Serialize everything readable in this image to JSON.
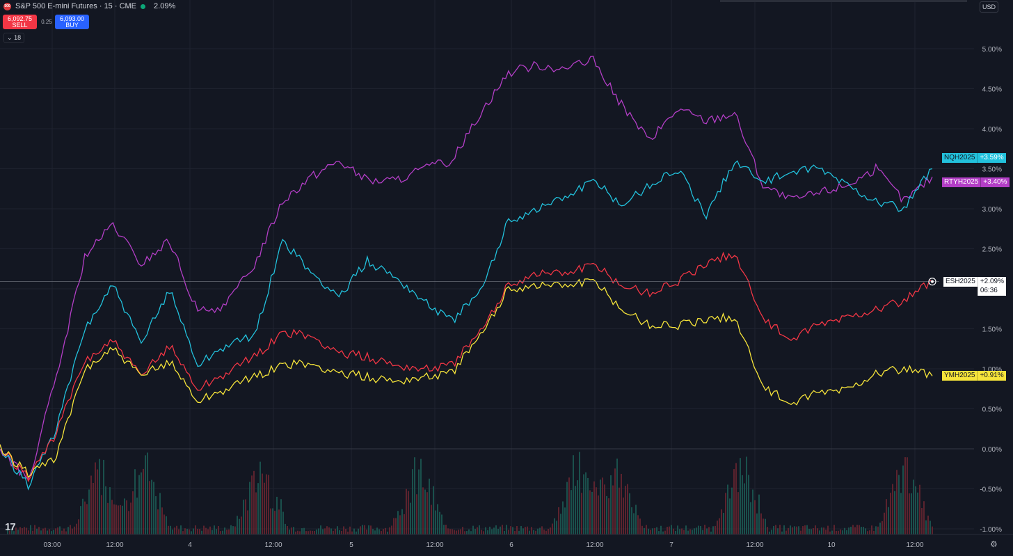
{
  "header": {
    "symbol_title": "S&P 500 E-mini Futures · 15 · CME",
    "change": "2.09%",
    "logo_text": "500",
    "sell_price": "6,092.75",
    "sell_label": "SELL",
    "spread": "0.25",
    "buy_price": "6,093.00",
    "buy_label": "BUY",
    "indicators_count": "18",
    "currency": "USD"
  },
  "colors": {
    "background": "#131722",
    "ES": "#f23645",
    "NQ": "#22c1dc",
    "RTY": "#b33ec6",
    "YM": "#f6e43a"
  },
  "chart_data": {
    "type": "line",
    "x_ticks": [
      "03:00",
      "12:00",
      "4",
      "12:00",
      "5",
      "12:00",
      "6",
      "12:00",
      "7",
      "12:00",
      "10",
      "12:00"
    ],
    "y_ticks": [
      "5.00%",
      "4.50%",
      "4.00%",
      "3.50%",
      "3.00%",
      "2.50%",
      "2.00%",
      "1.50%",
      "1.00%",
      "0.50%",
      "0.00%",
      "-0.50%",
      "-1.00%"
    ],
    "ylim": [
      -1.1,
      5.5
    ],
    "session_x": [
      "Feb 3 00:00",
      "Feb 3 03:00",
      "Feb 3 12:00",
      "Feb 4",
      "Feb 4 12:00",
      "Feb 5",
      "Feb 5 12:00",
      "Feb 6",
      "Feb 6 12:00",
      "Feb 7",
      "Feb 7 12:00",
      "Feb 10",
      "Feb 10 12:00",
      "Feb 10 13:00"
    ],
    "series": [
      {
        "name": "NQH2025",
        "label": "+3.59%",
        "last": 3.59,
        "values": [
          0.0,
          -0.45,
          0.25,
          1.5,
          2.05,
          1.3,
          2.0,
          1.05,
          1.3,
          1.4,
          2.6,
          2.2,
          1.9,
          2.35,
          2.15,
          1.85,
          1.6,
          1.95,
          2.85,
          3.0,
          3.15,
          3.35,
          3.05,
          3.3,
          3.5,
          2.9,
          3.6,
          3.35,
          3.45,
          3.5,
          3.3,
          3.1,
          3.0,
          3.5
        ]
      },
      {
        "name": "RTYH2025",
        "label": "+3.40%",
        "last": 3.4,
        "values": [
          0.0,
          -0.4,
          0.9,
          2.4,
          2.8,
          2.3,
          2.6,
          1.7,
          1.8,
          2.3,
          3.1,
          3.4,
          3.6,
          3.35,
          3.35,
          3.5,
          3.6,
          4.2,
          4.7,
          4.8,
          4.75,
          4.85,
          4.3,
          3.85,
          4.25,
          4.1,
          4.2,
          3.3,
          3.1,
          3.2,
          3.3,
          3.5,
          3.1,
          3.4
        ]
      },
      {
        "name": "ESH2025",
        "label": "+2.09%",
        "last": 2.09,
        "countdown": "06:36",
        "values": [
          0.0,
          -0.35,
          0.2,
          1.1,
          1.35,
          0.9,
          1.3,
          0.75,
          0.95,
          1.15,
          1.45,
          1.4,
          1.2,
          1.15,
          1.05,
          1.0,
          1.05,
          1.45,
          2.05,
          2.2,
          2.2,
          2.3,
          2.05,
          1.95,
          2.1,
          2.3,
          2.45,
          1.65,
          1.35,
          1.55,
          1.65,
          1.75,
          1.85,
          2.09
        ]
      },
      {
        "name": "YMH2025",
        "label": "+0.91%",
        "last": 0.91,
        "values": [
          0.0,
          -0.3,
          -0.1,
          1.0,
          1.25,
          0.9,
          1.1,
          0.6,
          0.75,
          0.9,
          1.05,
          1.05,
          0.95,
          0.9,
          0.85,
          0.9,
          0.95,
          1.4,
          2.0,
          2.05,
          2.05,
          2.1,
          1.75,
          1.55,
          1.55,
          1.6,
          1.65,
          0.8,
          0.55,
          0.7,
          0.75,
          0.95,
          1.0,
          0.91
        ]
      }
    ]
  }
}
